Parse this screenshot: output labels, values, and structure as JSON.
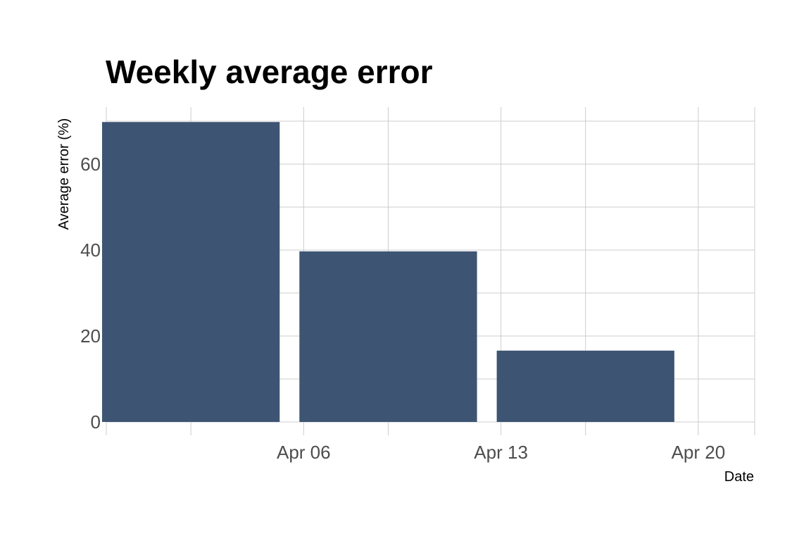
{
  "chart_data": {
    "type": "bar",
    "title": "Weekly average error",
    "xlabel": "Date",
    "ylabel": "Average error (%)",
    "categories": [
      "2024-04-02",
      "2024-04-09",
      "2024-04-16"
    ],
    "values": [
      69.8,
      39.7,
      16.6
    ],
    "x_ticks": [
      {
        "date": "2024-04-06",
        "label": "Apr 06"
      },
      {
        "date": "2024-04-13",
        "label": "Apr 13"
      },
      {
        "date": "2024-04-20",
        "label": "Apr 20"
      }
    ],
    "x_minor_ticks": [
      "2024-04-02",
      "2024-04-09",
      "2024-04-16"
    ],
    "xlim": [
      "2024-03-30",
      "2024-04-22"
    ],
    "y_ticks": [
      0,
      20,
      40,
      60
    ],
    "y_minor_ticks": [
      10,
      30,
      50,
      70
    ],
    "ylim": [
      0,
      70
    ],
    "bar_color": "#3d5573",
    "grid_color": "#cccccc",
    "grid": true,
    "legend": "none"
  }
}
